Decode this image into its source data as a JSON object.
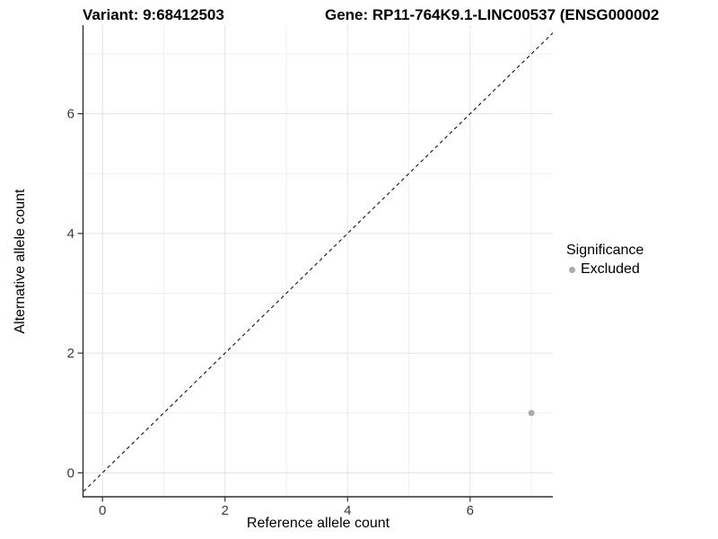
{
  "titles": {
    "variant": "Variant: 9:68412503",
    "gene": "Gene: RP11-764K9.1-LINC00537 (ENSG000002"
  },
  "chart_data": {
    "type": "scatter",
    "title": "Variant: 9:68412503 | Gene: RP11-764K9.1-LINC00537 (ENSG000002",
    "xlabel": "Reference allele count",
    "ylabel": "Alternative allele count",
    "xlim": [
      -0.31,
      7.35
    ],
    "ylim": [
      -0.4,
      7.48
    ],
    "x_major_ticks": [
      0,
      2,
      4,
      6
    ],
    "y_major_ticks": [
      0,
      2,
      4,
      6
    ],
    "x_minor_gridlines": [
      1,
      3,
      5,
      7
    ],
    "y_minor_gridlines": [
      1,
      3,
      5,
      7
    ],
    "grid": true,
    "series": [
      {
        "name": "Excluded",
        "points": [
          {
            "x": 7,
            "y": 1
          }
        ]
      }
    ],
    "reference_line": {
      "kind": "identity",
      "slope": 1,
      "intercept": 0,
      "style": "dashed"
    },
    "legend": {
      "position": "right",
      "title": "Significance",
      "items": [
        {
          "label": "Excluded",
          "color": "#aaaaaa"
        }
      ]
    }
  },
  "colors": {
    "point": "#aaaaaa",
    "grid_major": "#e3e3e3",
    "grid_minor": "#f0f0f0",
    "axis_line": "#2f2f2f",
    "tick_mark": "#333333",
    "tick_label": "#3a3a3a",
    "reference_line": "#111111",
    "background": "#ffffff"
  }
}
